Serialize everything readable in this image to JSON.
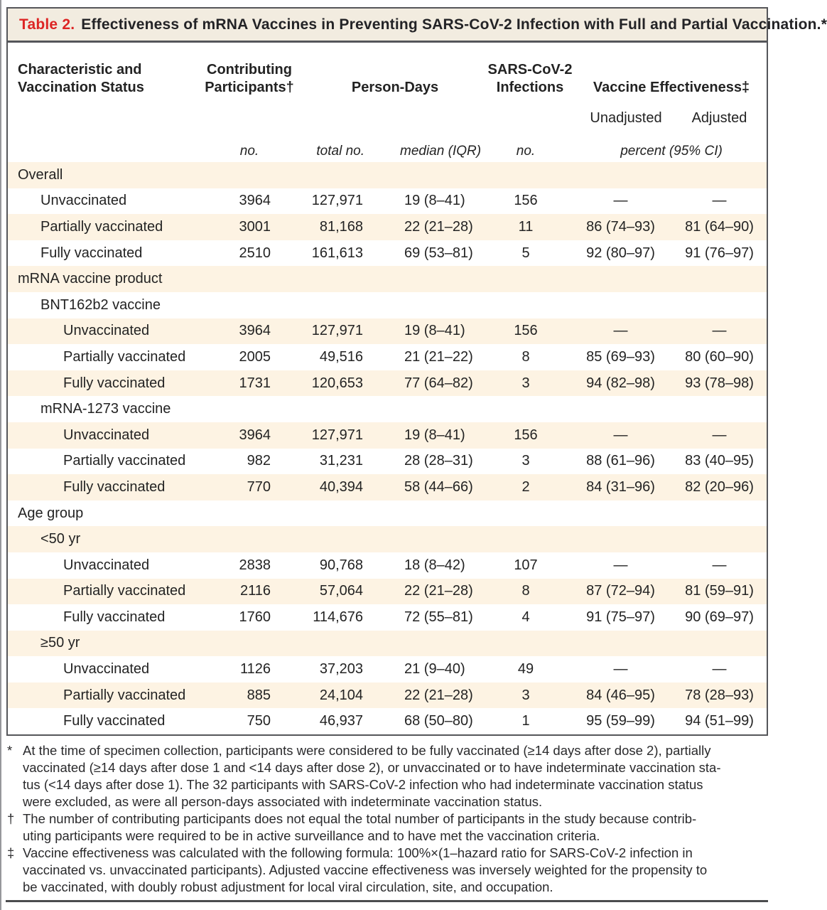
{
  "colors": {
    "accent_red": "#dd2524",
    "row_stripe": "#fdf3e3",
    "title_band": "#f2ece0",
    "border": "#55565a"
  },
  "title": {
    "label": "Table 2.",
    "text": "Effectiveness of mRNA Vaccines in Preventing SARS-CoV-2 Infection with Full and Partial Vaccination.*"
  },
  "table": {
    "headers": {
      "characteristic": "Characteristic and Vaccination Status",
      "participants": "Contributing Participants†",
      "person_days": "Person-Days",
      "infections": "SARS-CoV-2 Infections",
      "effectiveness": "Vaccine Effectiveness‡",
      "unadjusted": "Unadjusted",
      "adjusted": "Adjusted",
      "unit_no": "no.",
      "unit_total_no": "total no.",
      "unit_median_iqr": "median (IQR)",
      "unit_infections_no": "no.",
      "unit_percent_ci": "percent (95% CI)"
    },
    "rows": [
      {
        "label": "Overall",
        "indent": 0,
        "values": [
          "",
          "",
          "",
          "",
          "",
          ""
        ]
      },
      {
        "label": "Unvaccinated",
        "indent": 1,
        "values": [
          "3964",
          "127,971",
          "19 (8–41)",
          "156",
          "—",
          "—"
        ]
      },
      {
        "label": "Partially vaccinated",
        "indent": 1,
        "values": [
          "3001",
          "81,168",
          "22 (21–28)",
          "11",
          "86 (74–93)",
          "81 (64–90)"
        ]
      },
      {
        "label": "Fully vaccinated",
        "indent": 1,
        "values": [
          "2510",
          "161,613",
          "69 (53–81)",
          "5",
          "92 (80–97)",
          "91 (76–97)"
        ]
      },
      {
        "label": "mRNA vaccine product",
        "indent": 0,
        "values": [
          "",
          "",
          "",
          "",
          "",
          ""
        ]
      },
      {
        "label": "BNT162b2 vaccine",
        "indent": 1,
        "values": [
          "",
          "",
          "",
          "",
          "",
          ""
        ]
      },
      {
        "label": "Unvaccinated",
        "indent": 2,
        "values": [
          "3964",
          "127,971",
          "19 (8–41)",
          "156",
          "—",
          "—"
        ]
      },
      {
        "label": "Partially vaccinated",
        "indent": 2,
        "values": [
          "2005",
          "49,516",
          "21 (21–22)",
          "8",
          "85 (69–93)",
          "80 (60–90)"
        ]
      },
      {
        "label": "Fully vaccinated",
        "indent": 2,
        "values": [
          "1731",
          "120,653",
          "77 (64–82)",
          "3",
          "94 (82–98)",
          "93 (78–98)"
        ]
      },
      {
        "label": "mRNA-1273 vaccine",
        "indent": 1,
        "values": [
          "",
          "",
          "",
          "",
          "",
          ""
        ]
      },
      {
        "label": "Unvaccinated",
        "indent": 2,
        "values": [
          "3964",
          "127,971",
          "19 (8–41)",
          "156",
          "—",
          "—"
        ]
      },
      {
        "label": "Partially vaccinated",
        "indent": 2,
        "values": [
          "982",
          "31,231",
          "28 (28–31)",
          "3",
          "88 (61–96)",
          "83 (40–95)"
        ]
      },
      {
        "label": "Fully vaccinated",
        "indent": 2,
        "values": [
          "770",
          "40,394",
          "58 (44–66)",
          "2",
          "84 (31–96)",
          "82 (20–96)"
        ]
      },
      {
        "label": "Age group",
        "indent": 0,
        "values": [
          "",
          "",
          "",
          "",
          "",
          ""
        ]
      },
      {
        "label": "<50 yr",
        "indent": 1,
        "values": [
          "",
          "",
          "",
          "",
          "",
          ""
        ]
      },
      {
        "label": "Unvaccinated",
        "indent": 2,
        "values": [
          "2838",
          "90,768",
          "18 (8–42)",
          "107",
          "—",
          "—"
        ]
      },
      {
        "label": "Partially vaccinated",
        "indent": 2,
        "values": [
          "2116",
          "57,064",
          "22 (21–28)",
          "8",
          "87 (72–94)",
          "81 (59–91)"
        ]
      },
      {
        "label": "Fully vaccinated",
        "indent": 2,
        "values": [
          "1760",
          "114,676",
          "72 (55–81)",
          "4",
          "91 (75–97)",
          "90 (69–97)"
        ]
      },
      {
        "label": "≥50 yr",
        "indent": 1,
        "values": [
          "",
          "",
          "",
          "",
          "",
          ""
        ]
      },
      {
        "label": "Unvaccinated",
        "indent": 2,
        "values": [
          "1126",
          "37,203",
          "21 (9–40)",
          "49",
          "—",
          "—"
        ]
      },
      {
        "label": "Partially vaccinated",
        "indent": 2,
        "values": [
          "885",
          "24,104",
          "22 (21–28)",
          "3",
          "84 (46–95)",
          "78 (28–93)"
        ]
      },
      {
        "label": "Fully vaccinated",
        "indent": 2,
        "values": [
          "750",
          "46,937",
          "68 (50–80)",
          "1",
          "95 (59–99)",
          "94 (51–99)"
        ]
      }
    ]
  },
  "footnotes": [
    {
      "symbol": "*",
      "lines": [
        "At the time of specimen collection, participants were considered to be fully vaccinated (≥14 days after dose 2), partially",
        "vaccinated (≥14 days after dose 1 and <14 days after dose 2), or unvaccinated or to have indeterminate vaccination sta-",
        "tus (<14 days after dose 1). The 32 participants with SARS-CoV-2 infection who had indeterminate vaccination status",
        "were excluded, as were all person-days associated with indeterminate vaccination status."
      ]
    },
    {
      "symbol": "†",
      "lines": [
        "The number of contributing participants does not equal the total number of participants in the study because contrib-",
        "uting participants were required to be in active surveillance and to have met the vaccination criteria."
      ]
    },
    {
      "symbol": "‡",
      "lines": [
        "Vaccine effectiveness was calculated with the following formula: 100%×(1–hazard ratio for SARS-CoV-2 infection in",
        "vaccinated vs. unvaccinated participants). Adjusted vaccine effectiveness was inversely weighted for the propensity to",
        "be vaccinated, with doubly robust adjustment for local viral circulation, site, and occupation."
      ]
    }
  ]
}
